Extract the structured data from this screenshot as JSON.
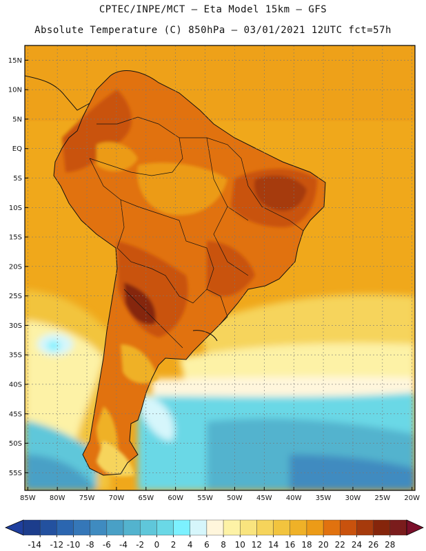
{
  "header": {
    "line1": "CPTEC/INPE/MCT –  Eta Model 15km – GFS",
    "line2": "Absolute Temperature (C) 850hPa – 03/01/2021 12UTC fct=57h"
  },
  "map": {
    "lat_labels": [
      "15N",
      "10N",
      "5N",
      "EQ",
      "5S",
      "10S",
      "15S",
      "20S",
      "25S",
      "30S",
      "35S",
      "40S",
      "45S",
      "50S",
      "55S"
    ],
    "lat_values": [
      15,
      10,
      5,
      0,
      -5,
      -10,
      -15,
      -20,
      -25,
      -30,
      -35,
      -40,
      -45,
      -50,
      -55
    ],
    "lon_labels": [
      "85W",
      "80W",
      "75W",
      "70W",
      "65W",
      "60W",
      "55W",
      "50W",
      "45W",
      "40W",
      "35W",
      "30W",
      "25W",
      "20W"
    ],
    "lon_values": [
      -85,
      -80,
      -75,
      -70,
      -65,
      -60,
      -55,
      -50,
      -45,
      -40,
      -35,
      -30,
      -25,
      -20
    ],
    "extent": {
      "lon_min": -85.5,
      "lon_max": -19.5,
      "lat_min": -58,
      "lat_max": 17.5
    }
  },
  "colorbar": {
    "labels": [
      "-14",
      "-12",
      "-10",
      "-8",
      "-6",
      "-4",
      "-2",
      "0",
      "2",
      "4",
      "6",
      "8",
      "10",
      "12",
      "14",
      "16",
      "18",
      "20",
      "22",
      "24",
      "26",
      "28"
    ],
    "colors": [
      "#1c3d8c",
      "#23519f",
      "#2b66b0",
      "#3577b8",
      "#3f8bc0",
      "#49a0c6",
      "#53b3ce",
      "#5fc7da",
      "#6ad8e6",
      "#7cf1ff",
      "#d6f6fb",
      "#fff6dc",
      "#fdf2a6",
      "#f9e47e",
      "#f6d45b",
      "#f2c43e",
      "#efb127",
      "#ec9b17",
      "#e1720f",
      "#c9520d",
      "#a63a0c",
      "#85250b",
      "#7a1c1c"
    ],
    "under_color": "#1f3f9e",
    "over_color": "#7a0f2a"
  },
  "colors": {
    "ocean_warm": "#f0a81b",
    "ocean_mid": "#f6d45b",
    "ocean_cool": "#fff6dc",
    "ocean_cold": "#6ad8e6",
    "land_hot": "#c9520d",
    "land_hotter": "#85250b",
    "land_base": "#e1720f"
  }
}
